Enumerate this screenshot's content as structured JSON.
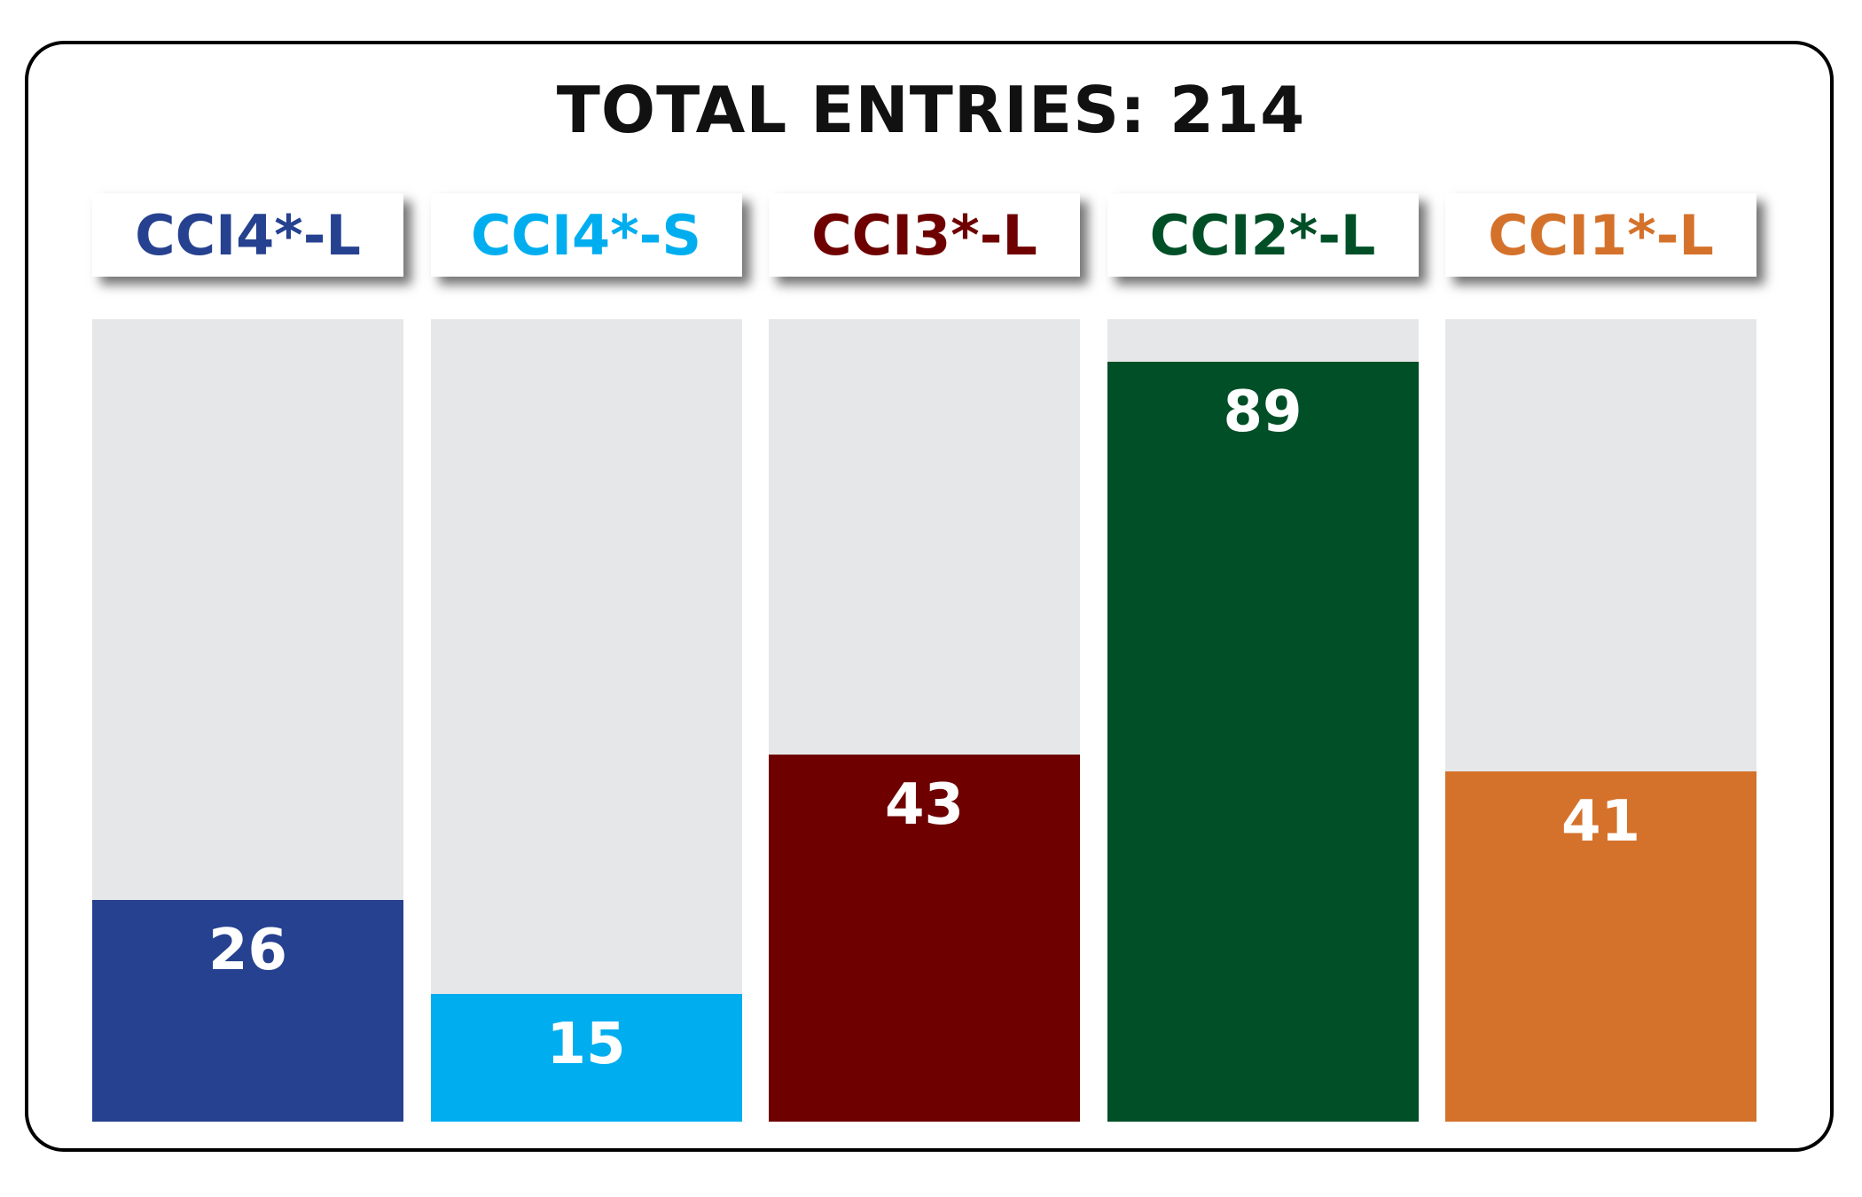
{
  "chart_data": {
    "type": "bar",
    "title": "TOTAL ENTRIES: 214",
    "categories": [
      "CCI4*-L",
      "CCI4*-S",
      "CCI3*-L",
      "CCI2*-L",
      "CCI1*-L"
    ],
    "values": [
      26,
      15,
      43,
      89,
      41
    ],
    "colors": [
      "#26418f",
      "#00aeef",
      "#6e0000",
      "#004f27",
      "#d4722b"
    ],
    "ylim": [
      0,
      94
    ]
  }
}
